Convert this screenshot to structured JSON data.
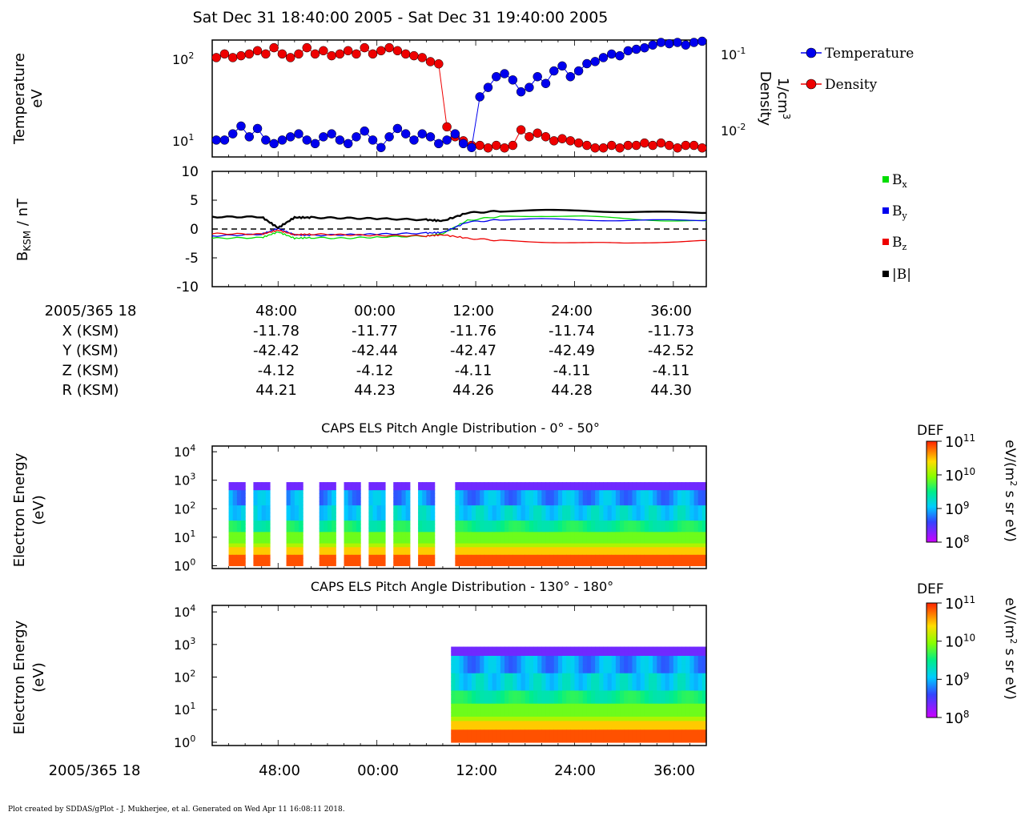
{
  "title": "Sat Dec 31 18:40:00 2005 - Sat Dec 31 19:40:00 2005",
  "colors": {
    "temperature": "#0000ee",
    "density": "#ee0000",
    "bx": "#00dd00",
    "by": "#0000ee",
    "bz": "#ee0000",
    "bmag": "#000000"
  },
  "footer": "Plot created by SDDAS/gPlot - J. Mukherjee, et al.  Generated on Wed Apr 11 16:08:11 2018.",
  "ephemeris": {
    "date_label": "2005/365 18",
    "rows": [
      {
        "label": "X (KSM)",
        "values": [
          "-11.78",
          "-11.77",
          "-11.76",
          "-11.74",
          "-11.73"
        ]
      },
      {
        "label": "Y (KSM)",
        "values": [
          "-42.42",
          "-42.44",
          "-42.47",
          "-42.49",
          "-42.52"
        ]
      },
      {
        "label": "Z (KSM)",
        "values": [
          "-4.12",
          "-4.12",
          "-4.11",
          "-4.11",
          "-4.11"
        ]
      },
      {
        "label": "R (KSM)",
        "values": [
          "44.21",
          "44.23",
          "44.26",
          "44.28",
          "44.30"
        ]
      }
    ]
  },
  "time_ticks": [
    "48:00",
    "00:00",
    "12:00",
    "24:00",
    "36:00"
  ],
  "bottom_date_label": "2005/365 18",
  "chart_data": [
    {
      "type": "scatter",
      "ylabel": "Temperature\neV",
      "y2label": "Density\n1/cm³",
      "ylim": [
        7,
        160
      ],
      "y2lim": [
        0.005,
        0.15
      ],
      "yscale": "log",
      "yticks": [
        "10^1",
        "10^2"
      ],
      "y2ticks": [
        "10^-2",
        "10^-1"
      ],
      "legend": [
        "Temperature",
        "Density"
      ],
      "legend_position": "right",
      "series": [
        {
          "name": "Temperature",
          "unit": "eV",
          "x": [
            0,
            1,
            2,
            3,
            4,
            5,
            6,
            7,
            8,
            9,
            10,
            11,
            12,
            13,
            14,
            15,
            16,
            17,
            18,
            19,
            20,
            21,
            22,
            23,
            24,
            25,
            26,
            27,
            28,
            29,
            30,
            31,
            32,
            33,
            34,
            35,
            36,
            37,
            38,
            39,
            40,
            41,
            42,
            43,
            44,
            45,
            46,
            47,
            48,
            49,
            50,
            51,
            52,
            53,
            54,
            55,
            56,
            57,
            58,
            59
          ],
          "values": [
            11,
            11,
            13,
            16,
            12,
            15,
            11,
            10,
            11,
            12,
            13,
            11,
            10,
            12,
            13,
            11,
            10,
            12,
            14,
            11,
            9,
            12,
            15,
            13,
            11,
            13,
            12,
            10,
            11,
            13,
            10,
            9,
            35,
            45,
            60,
            65,
            55,
            40,
            45,
            60,
            50,
            70,
            80,
            60,
            70,
            85,
            90,
            100,
            110,
            105,
            120,
            125,
            130,
            140,
            150,
            145,
            150,
            140,
            150,
            155
          ]
        },
        {
          "name": "Density",
          "unit": "1/cm³",
          "x": [
            0,
            1,
            2,
            3,
            4,
            5,
            6,
            7,
            8,
            9,
            10,
            11,
            12,
            13,
            14,
            15,
            16,
            17,
            18,
            19,
            20,
            21,
            22,
            23,
            24,
            25,
            26,
            27,
            28,
            29,
            30,
            31,
            32,
            33,
            34,
            35,
            36,
            37,
            38,
            39,
            40,
            41,
            42,
            43,
            44,
            45,
            46,
            47,
            48,
            49,
            50,
            51,
            52,
            53,
            54,
            55,
            56,
            57,
            58,
            59
          ],
          "values": [
            0.09,
            0.1,
            0.09,
            0.095,
            0.1,
            0.11,
            0.1,
            0.12,
            0.1,
            0.09,
            0.1,
            0.12,
            0.1,
            0.11,
            0.095,
            0.1,
            0.11,
            0.1,
            0.12,
            0.1,
            0.11,
            0.12,
            0.11,
            0.1,
            0.095,
            0.09,
            0.08,
            0.075,
            0.012,
            0.009,
            0.008,
            0.007,
            0.007,
            0.0065,
            0.007,
            0.0065,
            0.007,
            0.011,
            0.009,
            0.01,
            0.009,
            0.008,
            0.0085,
            0.008,
            0.0075,
            0.007,
            0.0065,
            0.0065,
            0.007,
            0.0065,
            0.007,
            0.007,
            0.0075,
            0.007,
            0.0075,
            0.007,
            0.0065,
            0.007,
            0.007,
            0.0065
          ]
        }
      ]
    },
    {
      "type": "line",
      "ylabel": "BKSM / nT",
      "ylim": [
        -10,
        10
      ],
      "yticks": [
        "10",
        "5",
        "0",
        "-5",
        "-10"
      ],
      "legend": [
        "Bx",
        "By",
        "Bz",
        "|B|"
      ],
      "legend_position": "right",
      "zero_line": "dashed",
      "series": [
        {
          "name": "Bx",
          "x": [
            0,
            6,
            8,
            10,
            12,
            16,
            20,
            26,
            28,
            31,
            35,
            40,
            45,
            50,
            55,
            60
          ],
          "values": [
            -1.6,
            -1.5,
            -0.5,
            -1.6,
            -1.5,
            -1.6,
            -1.4,
            -1.2,
            -0.8,
            1.5,
            2.2,
            2.3,
            2.2,
            1.8,
            1.5,
            1.4
          ]
        },
        {
          "name": "By",
          "x": [
            0,
            6,
            8,
            10,
            12,
            16,
            20,
            26,
            28,
            31,
            35,
            40,
            45,
            50,
            55,
            60
          ],
          "values": [
            -1.2,
            -0.9,
            0.1,
            -1.0,
            -1.1,
            -1.0,
            -0.9,
            -0.7,
            -0.6,
            1.2,
            1.6,
            1.7,
            1.6,
            1.5,
            1.5,
            1.5
          ]
        },
        {
          "name": "Bz",
          "x": [
            0,
            6,
            8,
            10,
            12,
            16,
            20,
            26,
            28,
            31,
            35,
            40,
            45,
            50,
            55,
            60
          ],
          "values": [
            -0.8,
            -0.9,
            -0.2,
            -1.0,
            -0.9,
            -1.0,
            -1.1,
            -1.2,
            -1.0,
            -1.6,
            -2.0,
            -2.2,
            -2.4,
            -2.5,
            -2.2,
            -2.0
          ]
        },
        {
          "name": "|B|",
          "x": [
            0,
            6,
            8,
            10,
            12,
            16,
            20,
            26,
            28,
            31,
            35,
            40,
            45,
            50,
            55,
            60
          ],
          "values": [
            2.1,
            2.1,
            0.2,
            2.0,
            2.0,
            1.9,
            1.8,
            1.6,
            1.4,
            2.8,
            3.1,
            3.2,
            3.2,
            3.0,
            2.9,
            2.8
          ]
        }
      ]
    },
    {
      "type": "heatmap",
      "title": "CAPS ELS Pitch Angle Distribution - 0° - 50°",
      "ylabel": "Electron Energy\n(eV)",
      "yscale": "log",
      "yticks": [
        "10^0",
        "10^1",
        "10^2",
        "10^3",
        "10^4"
      ],
      "colorbar": {
        "label": "DEF",
        "unit": "eV/(m² s sr eV)",
        "range": [
          100000000.0,
          100000000000.0
        ],
        "ticks": [
          "10^8",
          "10^9",
          "10^10",
          "10^11"
        ]
      },
      "data_bursts_before_1210": [
        [
          2,
          4
        ],
        [
          5,
          7
        ],
        [
          9,
          11
        ],
        [
          13,
          15
        ],
        [
          16,
          18
        ],
        [
          19,
          21
        ],
        [
          22,
          24
        ],
        [
          25,
          27
        ]
      ]
    },
    {
      "type": "heatmap",
      "title": "CAPS ELS Pitch Angle Distribution - 130° - 180°",
      "ylabel": "Electron Energy\n(eV)",
      "yscale": "log",
      "yticks": [
        "10^0",
        "10^1",
        "10^2",
        "10^3",
        "10^4"
      ],
      "colorbar": {
        "label": "DEF",
        "unit": "eV/(m² s sr eV)",
        "range": [
          100000000.0,
          100000000000.0
        ],
        "ticks": [
          "10^8",
          "10^9",
          "10^10",
          "10^11"
        ]
      },
      "data_start_minute": 29
    }
  ]
}
